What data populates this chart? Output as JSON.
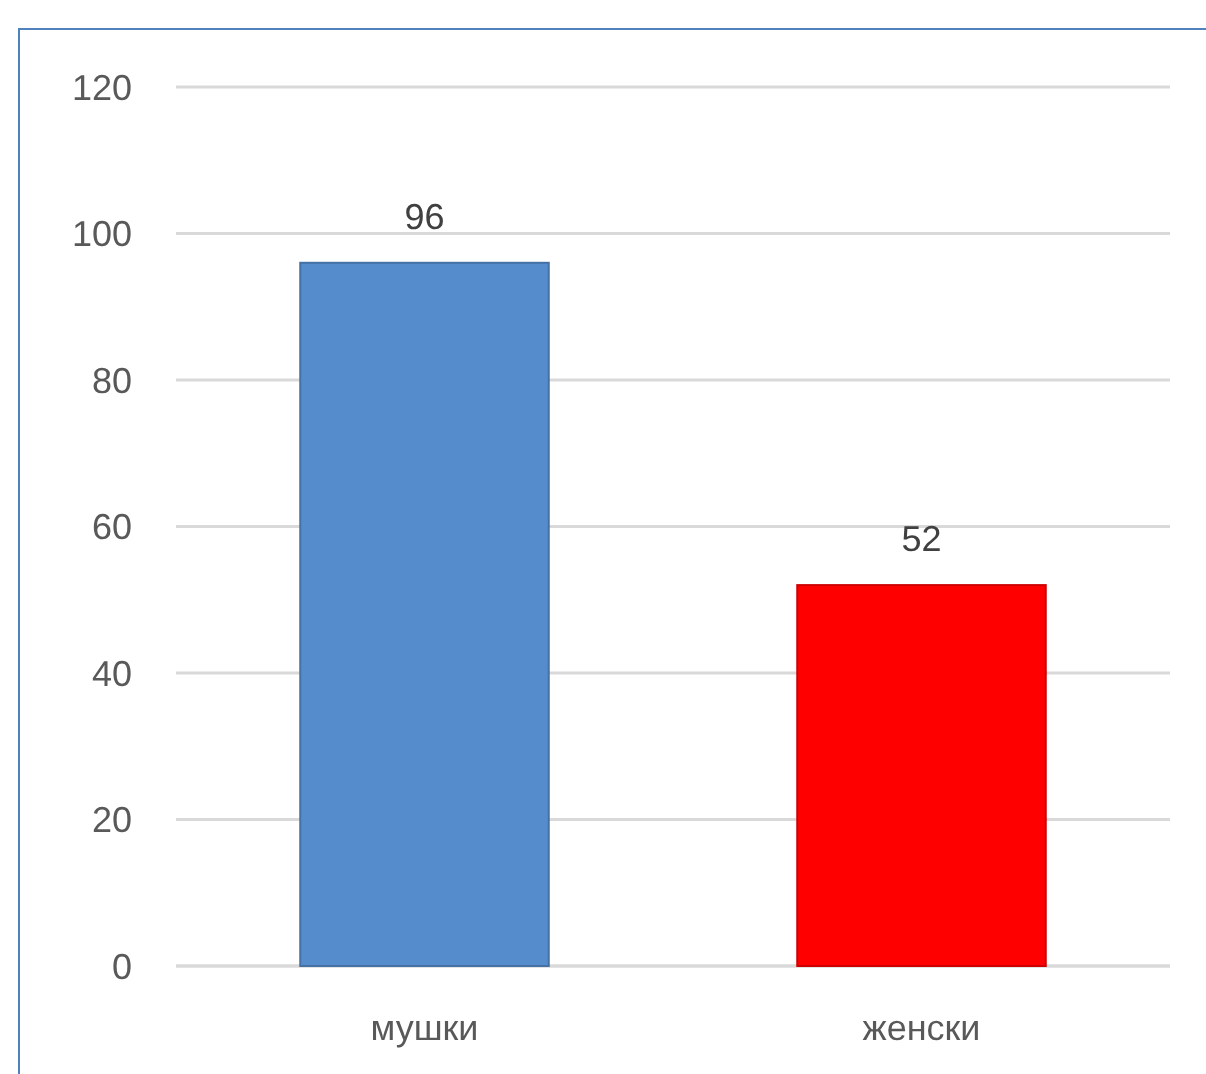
{
  "chart_data": {
    "type": "bar",
    "categories": [
      "мушки",
      "женски"
    ],
    "values": [
      96,
      52
    ],
    "colors": [
      "#558ccb",
      "#ff0000"
    ],
    "ylim": [
      0,
      120
    ],
    "yticks": [
      0,
      20,
      40,
      60,
      80,
      100,
      120
    ],
    "grid": "y",
    "data_labels": true
  }
}
